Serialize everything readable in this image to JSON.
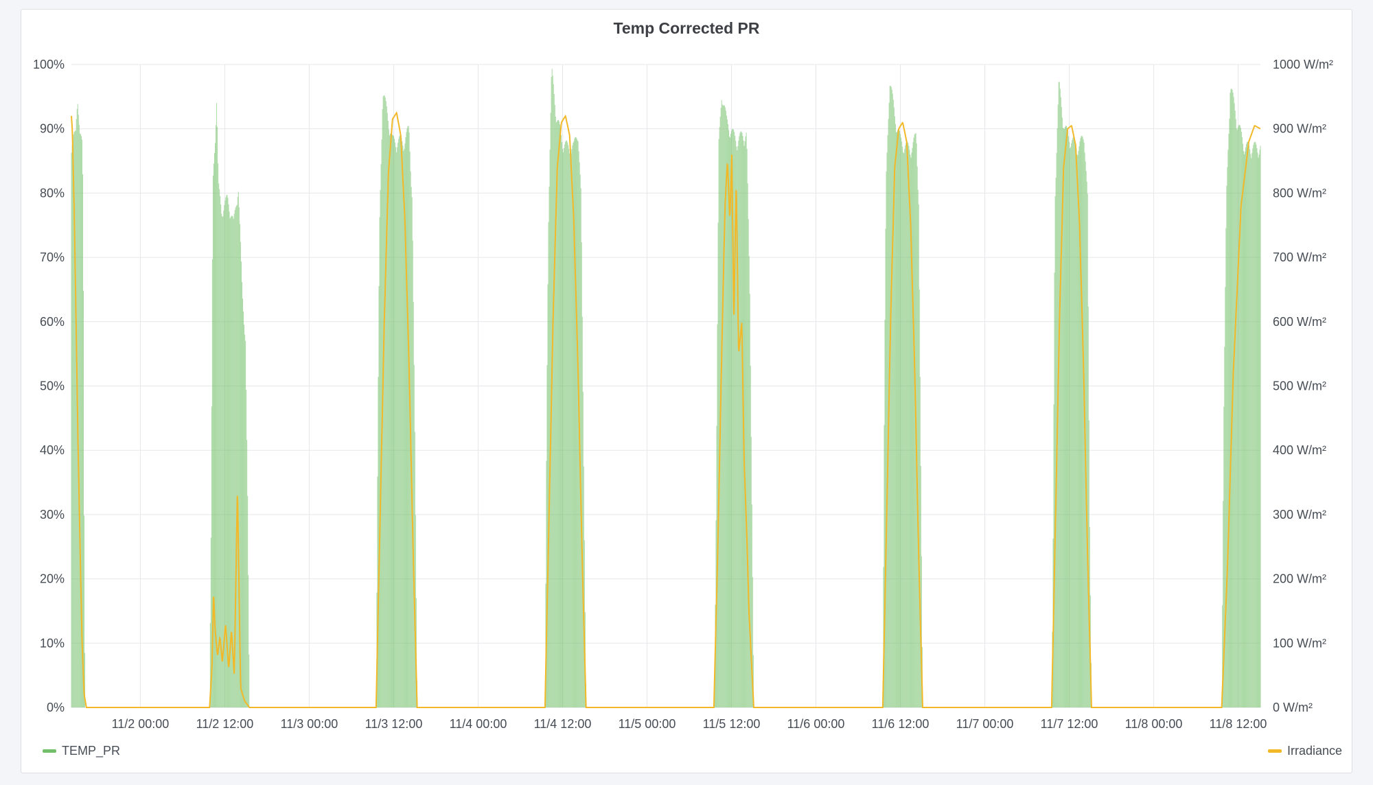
{
  "panel": {
    "title": "Temp Corrected PR"
  },
  "legend": {
    "left": {
      "label": "TEMP_PR",
      "color": "#73bf69"
    },
    "right": {
      "label": "Irradiance",
      "color": "#f2b828"
    }
  },
  "chart_data": {
    "type": "bar",
    "title": "Temp Corrected PR",
    "x_range": [
      "11/1 14:12",
      "11/8 15:10"
    ],
    "x_ticks": [
      "11/2 00:00",
      "11/2 12:00",
      "11/3 00:00",
      "11/3 12:00",
      "11/4 00:00",
      "11/4 12:00",
      "11/5 00:00",
      "11/5 12:00",
      "11/6 00:00",
      "11/6 12:00",
      "11/7 00:00",
      "11/7 12:00",
      "11/8 00:00",
      "11/8 12:00"
    ],
    "y_left": {
      "ylim": [
        0,
        100
      ],
      "ticks": [
        "0%",
        "10%",
        "20%",
        "30%",
        "40%",
        "50%",
        "60%",
        "70%",
        "80%",
        "90%",
        "100%"
      ]
    },
    "y_right": {
      "ylim": [
        0,
        1000
      ],
      "ticks": [
        "0 W/m²",
        "100 W/m²",
        "200 W/m²",
        "300 W/m²",
        "400 W/m²",
        "500 W/m²",
        "600 W/m²",
        "700 W/m²",
        "800 W/m²",
        "900 W/m²",
        "1000 W/m²"
      ]
    },
    "grid": true,
    "legend_position": "bottom",
    "series": [
      {
        "name": "TEMP_PR",
        "type": "bar",
        "axis": "left",
        "color": "#73bf69",
        "unit": "%",
        "days": [
          {
            "date": "11/1",
            "start": "14:12",
            "end": "16:10",
            "shape": [
              [
                0,
                88
              ],
              [
                0.1,
                89
              ],
              [
                0.3,
                90
              ],
              [
                0.45,
                97
              ],
              [
                0.6,
                90
              ],
              [
                0.8,
                88
              ],
              [
                0.88,
                60
              ],
              [
                0.93,
                18
              ],
              [
                1,
                0
              ]
            ]
          },
          {
            "date": "11/2",
            "start": "09:50",
            "end": "15:30",
            "shape": [
              [
                0,
                0
              ],
              [
                0.04,
                30
              ],
              [
                0.08,
                82
              ],
              [
                0.14,
                90
              ],
              [
                0.18,
                96
              ],
              [
                0.22,
                82
              ],
              [
                0.3,
                78
              ],
              [
                0.45,
                80
              ],
              [
                0.6,
                76
              ],
              [
                0.72,
                82
              ],
              [
                0.82,
                65
              ],
              [
                0.9,
                58
              ],
              [
                0.95,
                35
              ],
              [
                1,
                0
              ]
            ]
          },
          {
            "date": "11/3",
            "start": "09:30",
            "end": "15:20",
            "shape": [
              [
                0,
                0
              ],
              [
                0.04,
                42
              ],
              [
                0.08,
                75
              ],
              [
                0.16,
                97
              ],
              [
                0.28,
                93
              ],
              [
                0.4,
                89
              ],
              [
                0.55,
                89
              ],
              [
                0.7,
                89
              ],
              [
                0.8,
                91
              ],
              [
                0.88,
                80
              ],
              [
                0.94,
                45
              ],
              [
                1,
                0
              ]
            ]
          },
          {
            "date": "11/4",
            "start": "09:30",
            "end": "15:20",
            "shape": [
              [
                0,
                0
              ],
              [
                0.04,
                45
              ],
              [
                0.08,
                76
              ],
              [
                0.16,
                100
              ],
              [
                0.28,
                93
              ],
              [
                0.42,
                89
              ],
              [
                0.55,
                88
              ],
              [
                0.7,
                88
              ],
              [
                0.8,
                91
              ],
              [
                0.88,
                80
              ],
              [
                0.94,
                40
              ],
              [
                1,
                0
              ]
            ]
          },
          {
            "date": "11/5",
            "start": "09:30",
            "end": "15:10",
            "shape": [
              [
                0,
                0
              ],
              [
                0.02,
                5
              ],
              [
                0.06,
                35
              ],
              [
                0.12,
                88
              ],
              [
                0.2,
                97
              ],
              [
                0.32,
                92
              ],
              [
                0.48,
                90
              ],
              [
                0.6,
                89
              ],
              [
                0.72,
                90
              ],
              [
                0.82,
                90
              ],
              [
                0.9,
                65
              ],
              [
                0.96,
                28
              ],
              [
                1,
                0
              ]
            ]
          },
          {
            "date": "11/6",
            "start": "09:30",
            "end": "15:10",
            "shape": [
              [
                0,
                0
              ],
              [
                0.04,
                50
              ],
              [
                0.08,
                82
              ],
              [
                0.17,
                99
              ],
              [
                0.3,
                93
              ],
              [
                0.45,
                89
              ],
              [
                0.6,
                88
              ],
              [
                0.74,
                88
              ],
              [
                0.84,
                90
              ],
              [
                0.9,
                80
              ],
              [
                0.95,
                40
              ],
              [
                1,
                0
              ]
            ]
          },
          {
            "date": "11/7",
            "start": "09:30",
            "end": "15:10",
            "shape": [
              [
                0,
                0
              ],
              [
                0.03,
                20
              ],
              [
                0.08,
                80
              ],
              [
                0.18,
                98
              ],
              [
                0.32,
                91
              ],
              [
                0.5,
                89
              ],
              [
                0.68,
                88
              ],
              [
                0.82,
                90
              ],
              [
                0.9,
                80
              ],
              [
                0.95,
                30
              ],
              [
                1,
                0
              ]
            ]
          },
          {
            "date": "11/8",
            "start": "09:40",
            "end": "15:10",
            "shape": [
              [
                0,
                0
              ],
              [
                0.05,
                45
              ],
              [
                0.12,
                80
              ],
              [
                0.22,
                98
              ],
              [
                0.4,
                92
              ],
              [
                0.6,
                88
              ],
              [
                0.8,
                88
              ],
              [
                1,
                88
              ]
            ]
          }
        ]
      },
      {
        "name": "Irradiance",
        "type": "line",
        "axis": "right",
        "color": "#f2b828",
        "unit": "W/m²",
        "days": [
          {
            "date": "11/1",
            "start": "14:12",
            "end": "16:20",
            "shape": [
              [
                0,
                920
              ],
              [
                0.06,
                900
              ],
              [
                0.2,
                760
              ],
              [
                0.45,
                400
              ],
              [
                0.7,
                110
              ],
              [
                0.85,
                20
              ],
              [
                1,
                0
              ]
            ]
          },
          {
            "date": "11/2",
            "start": "09:50",
            "end": "15:30",
            "shape": [
              [
                0,
                0
              ],
              [
                0.06,
                60
              ],
              [
                0.1,
                180
              ],
              [
                0.14,
                120
              ],
              [
                0.2,
                80
              ],
              [
                0.26,
                110
              ],
              [
                0.32,
                70
              ],
              [
                0.4,
                130
              ],
              [
                0.48,
                60
              ],
              [
                0.55,
                120
              ],
              [
                0.62,
                50
              ],
              [
                0.7,
                340
              ],
              [
                0.78,
                30
              ],
              [
                0.88,
                10
              ],
              [
                1,
                0
              ]
            ]
          },
          {
            "date": "11/3",
            "start": "09:30",
            "end": "15:20",
            "shape": [
              [
                0,
                0
              ],
              [
                0.1,
                300
              ],
              [
                0.2,
                600
              ],
              [
                0.3,
                830
              ],
              [
                0.4,
                915
              ],
              [
                0.5,
                925
              ],
              [
                0.6,
                890
              ],
              [
                0.7,
                760
              ],
              [
                0.8,
                540
              ],
              [
                0.9,
                250
              ],
              [
                1,
                0
              ]
            ]
          },
          {
            "date": "11/4",
            "start": "09:30",
            "end": "15:20",
            "shape": [
              [
                0,
                0
              ],
              [
                0.1,
                300
              ],
              [
                0.2,
                610
              ],
              [
                0.3,
                840
              ],
              [
                0.4,
                910
              ],
              [
                0.5,
                920
              ],
              [
                0.6,
                890
              ],
              [
                0.7,
                760
              ],
              [
                0.8,
                540
              ],
              [
                0.9,
                250
              ],
              [
                1,
                0
              ]
            ]
          },
          {
            "date": "11/5",
            "start": "09:30",
            "end": "15:10",
            "shape": [
              [
                0,
                0
              ],
              [
                0.1,
                250
              ],
              [
                0.2,
                560
              ],
              [
                0.28,
                780
              ],
              [
                0.34,
                850
              ],
              [
                0.4,
                760
              ],
              [
                0.45,
                860
              ],
              [
                0.5,
                600
              ],
              [
                0.56,
                820
              ],
              [
                0.62,
                550
              ],
              [
                0.7,
                600
              ],
              [
                0.76,
                380
              ],
              [
                0.82,
                280
              ],
              [
                0.88,
                150
              ],
              [
                1,
                0
              ]
            ]
          },
          {
            "date": "11/6",
            "start": "09:30",
            "end": "15:10",
            "shape": [
              [
                0,
                0
              ],
              [
                0.1,
                300
              ],
              [
                0.2,
                610
              ],
              [
                0.3,
                840
              ],
              [
                0.4,
                900
              ],
              [
                0.5,
                910
              ],
              [
                0.6,
                880
              ],
              [
                0.7,
                750
              ],
              [
                0.8,
                530
              ],
              [
                0.9,
                240
              ],
              [
                1,
                0
              ]
            ]
          },
          {
            "date": "11/7",
            "start": "09:30",
            "end": "15:10",
            "shape": [
              [
                0,
                0
              ],
              [
                0.1,
                300
              ],
              [
                0.2,
                610
              ],
              [
                0.3,
                840
              ],
              [
                0.4,
                900
              ],
              [
                0.5,
                905
              ],
              [
                0.6,
                875
              ],
              [
                0.7,
                750
              ],
              [
                0.8,
                530
              ],
              [
                0.9,
                240
              ],
              [
                1,
                0
              ]
            ]
          },
          {
            "date": "11/8",
            "start": "09:40",
            "end": "15:10",
            "shape": [
              [
                0,
                0
              ],
              [
                0.15,
                220
              ],
              [
                0.3,
                520
              ],
              [
                0.5,
                780
              ],
              [
                0.7,
                880
              ],
              [
                0.85,
                905
              ],
              [
                1,
                900
              ]
            ]
          }
        ]
      }
    ]
  }
}
